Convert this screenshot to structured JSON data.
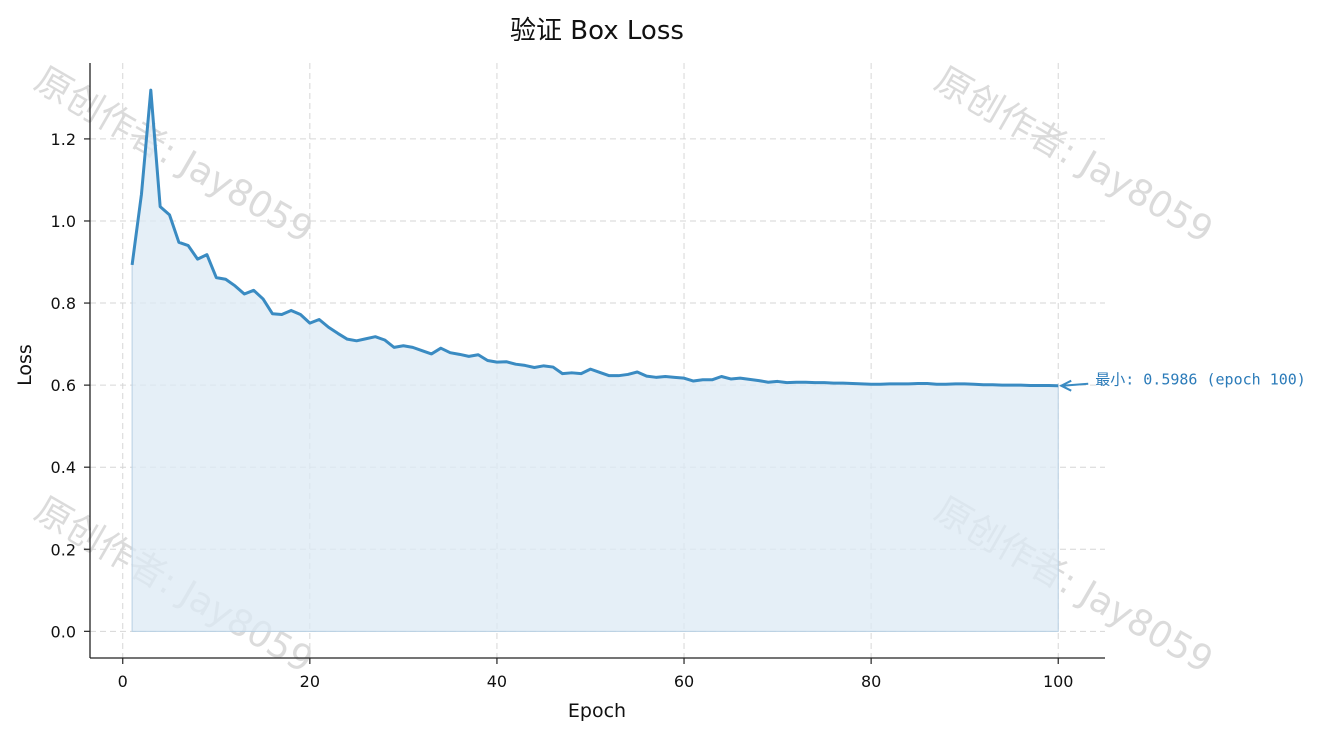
{
  "chart_data": {
    "type": "area",
    "title": "验证 Box Loss",
    "xlabel": "Epoch",
    "ylabel": "Loss",
    "xlim": [
      -3.5,
      105
    ],
    "ylim": [
      -0.065,
      1.385
    ],
    "xticks": [
      0,
      20,
      40,
      60,
      80,
      100
    ],
    "yticks": [
      0.0,
      0.2,
      0.4,
      0.6,
      0.8,
      1.0,
      1.2
    ],
    "xtick_labels": [
      "0",
      "20",
      "40",
      "60",
      "80",
      "100"
    ],
    "ytick_labels": [
      "0.0",
      "0.2",
      "0.4",
      "0.6",
      "0.8",
      "1.0",
      "1.2"
    ],
    "grid": true,
    "line_color": "#3a8bc2",
    "fill_color": "#dce9f4",
    "x": [
      1,
      2,
      3,
      4,
      5,
      6,
      7,
      8,
      9,
      10,
      11,
      12,
      13,
      14,
      15,
      16,
      17,
      18,
      19,
      20,
      21,
      22,
      23,
      24,
      25,
      26,
      27,
      28,
      29,
      30,
      31,
      32,
      33,
      34,
      35,
      36,
      37,
      38,
      39,
      40,
      41,
      42,
      43,
      44,
      45,
      46,
      47,
      48,
      49,
      50,
      51,
      52,
      53,
      54,
      55,
      56,
      57,
      58,
      59,
      60,
      61,
      62,
      63,
      64,
      65,
      66,
      67,
      68,
      69,
      70,
      71,
      72,
      73,
      74,
      75,
      76,
      77,
      78,
      79,
      80,
      81,
      82,
      83,
      84,
      85,
      86,
      87,
      88,
      89,
      90,
      91,
      92,
      93,
      94,
      95,
      96,
      97,
      98,
      99,
      100
    ],
    "y": [
      0.893,
      1.065,
      1.319,
      1.035,
      1.015,
      0.948,
      0.94,
      0.907,
      0.918,
      0.862,
      0.858,
      0.842,
      0.822,
      0.831,
      0.81,
      0.774,
      0.772,
      0.782,
      0.772,
      0.751,
      0.76,
      0.741,
      0.726,
      0.712,
      0.708,
      0.713,
      0.718,
      0.71,
      0.692,
      0.696,
      0.692,
      0.684,
      0.676,
      0.69,
      0.679,
      0.675,
      0.67,
      0.674,
      0.66,
      0.656,
      0.657,
      0.651,
      0.648,
      0.643,
      0.647,
      0.644,
      0.628,
      0.63,
      0.628,
      0.639,
      0.631,
      0.623,
      0.623,
      0.626,
      0.632,
      0.622,
      0.619,
      0.621,
      0.619,
      0.617,
      0.61,
      0.613,
      0.613,
      0.621,
      0.615,
      0.617,
      0.614,
      0.611,
      0.607,
      0.609,
      0.606,
      0.607,
      0.607,
      0.606,
      0.606,
      0.605,
      0.605,
      0.604,
      0.603,
      0.602,
      0.602,
      0.603,
      0.603,
      0.603,
      0.604,
      0.604,
      0.602,
      0.602,
      0.603,
      0.603,
      0.602,
      0.601,
      0.601,
      0.6,
      0.6,
      0.6,
      0.599,
      0.599,
      0.599,
      0.5986
    ],
    "annotation": {
      "text": "最小: 0.5986 (epoch 100)",
      "x": 100,
      "y": 0.5986
    },
    "watermark": "原创作者: Jay8059"
  }
}
